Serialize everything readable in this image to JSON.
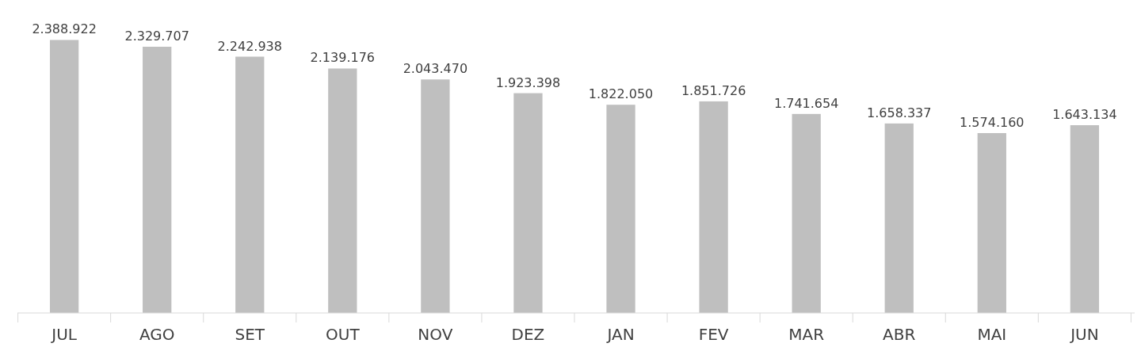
{
  "chart_data": {
    "type": "bar",
    "categories": [
      "JUL",
      "AGO",
      "SET",
      "OUT",
      "NOV",
      "DEZ",
      "JAN",
      "FEV",
      "MAR",
      "ABR",
      "MAI",
      "JUN"
    ],
    "values": [
      2388922,
      2329707,
      2242938,
      2139176,
      2043470,
      1923398,
      1822050,
      1851726,
      1741654,
      1658337,
      1574160,
      1643134
    ],
    "value_labels": [
      "2.388.922",
      "2.329.707",
      "2.242.938",
      "2.139.176",
      "2.043.470",
      "1.923.398",
      "1.822.050",
      "1.851.726",
      "1.741.654",
      "1.658.337",
      "1.574.160",
      "1.643.134"
    ],
    "color": "#bfbfbf"
  }
}
